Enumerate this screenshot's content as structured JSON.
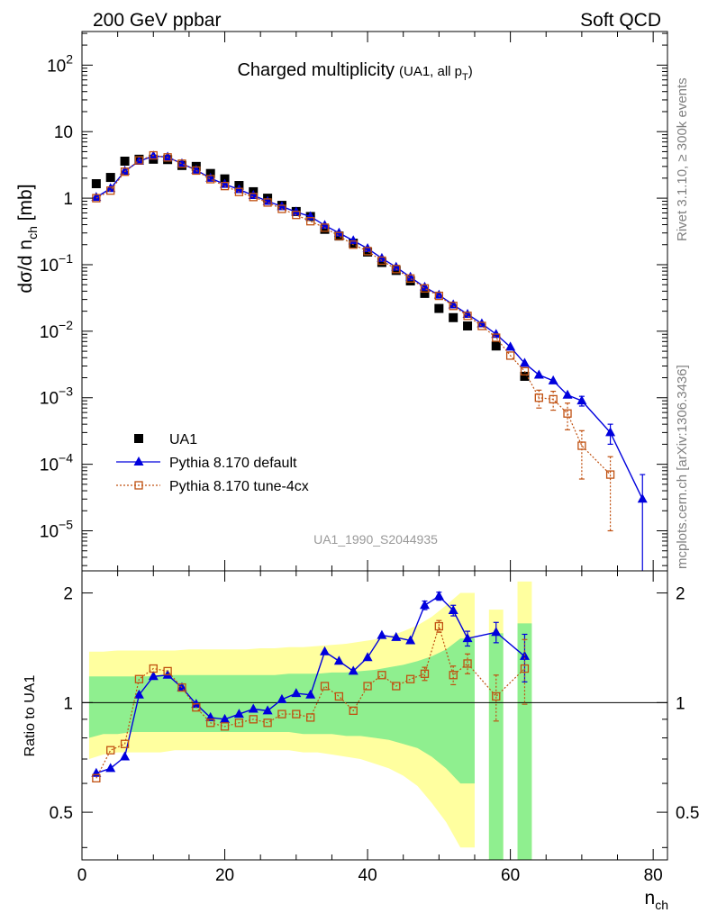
{
  "header": {
    "left": "200 GeV ppbar",
    "right": "Soft QCD"
  },
  "side": {
    "rivet": "Rivet 3.1.10, ≥ 300k events",
    "mcplots": "mcplots.cern.ch [arXiv:1306.3436]"
  },
  "chart_data": {
    "type": "scatter",
    "title": "Charged multiplicity",
    "title_note": "(UA1, all p",
    "title_note_sub": "T",
    "title_note_end": ")",
    "analysis_id": "UA1_1990_S2044935",
    "xlabel": "n",
    "xlabel_sub": "ch",
    "ylabel": "dσ/d n",
    "ylabel_sub": "ch",
    "ylabel_unit": " [mb]",
    "ratio_ylabel": "Ratio to UA1",
    "xlim": [
      0,
      82
    ],
    "ylim": [
      2.5e-06,
      320
    ],
    "ratio_ylim": [
      0.37,
      2.3
    ],
    "x_ticks": [
      0,
      20,
      40,
      60,
      80
    ],
    "x_tick_labels": [
      "0",
      "20",
      "40",
      "60",
      "80"
    ],
    "y_ticks": [
      1e-05,
      0.0001,
      0.001,
      0.01,
      0.1,
      1,
      10,
      100
    ],
    "y_tick_labels": [
      {
        "base": "10",
        "exp": "−5"
      },
      {
        "base": "10",
        "exp": "−4"
      },
      {
        "base": "10",
        "exp": "−3"
      },
      {
        "base": "10",
        "exp": "−2"
      },
      {
        "base": "10",
        "exp": "−1"
      },
      {
        "base": "1",
        "exp": ""
      },
      {
        "base": "10",
        "exp": ""
      },
      {
        "base": "10",
        "exp": "2"
      }
    ],
    "ratio_ticks": [
      0.5,
      1,
      2
    ],
    "ratio_tick_labels": [
      "0.5",
      "1",
      "2"
    ],
    "legend": [
      {
        "label": "UA1",
        "marker": "square-filled",
        "color": "#000000"
      },
      {
        "label": "Pythia 8.170 default",
        "marker": "triangle",
        "color": "#0000dd"
      },
      {
        "label": "Pythia 8.170 tune-4cx",
        "marker": "square-open",
        "color": "#c05010"
      }
    ],
    "data": {
      "name": "UA1",
      "x": [
        2,
        4,
        6,
        8,
        10,
        12,
        14,
        16,
        18,
        20,
        22,
        24,
        26,
        28,
        30,
        32,
        34,
        36,
        38,
        40,
        42,
        44,
        46,
        48,
        50,
        52,
        54,
        58,
        62
      ],
      "y": [
        1.65,
        2.05,
        3.6,
        3.85,
        3.85,
        3.8,
        3.1,
        3.0,
        2.35,
        1.95,
        1.55,
        1.25,
        1.0,
        0.78,
        0.63,
        0.53,
        0.34,
        0.27,
        0.21,
        0.155,
        0.108,
        0.082,
        0.057,
        0.037,
        0.022,
        0.016,
        0.012,
        0.006,
        0.0021
      ]
    },
    "band_x": [
      1,
      3,
      5,
      7,
      9,
      11,
      13,
      15,
      17,
      19,
      21,
      23,
      25,
      27,
      29,
      31,
      33,
      35,
      37,
      39,
      41,
      43,
      45,
      47,
      49,
      51,
      53,
      55
    ],
    "band_inner_lo": [
      0.8,
      0.82,
      0.82,
      0.83,
      0.83,
      0.83,
      0.83,
      0.83,
      0.83,
      0.83,
      0.83,
      0.83,
      0.83,
      0.83,
      0.83,
      0.82,
      0.82,
      0.82,
      0.81,
      0.81,
      0.8,
      0.79,
      0.77,
      0.75,
      0.71,
      0.66,
      0.6,
      0.6
    ],
    "band_inner_hi": [
      1.18,
      1.18,
      1.18,
      1.18,
      1.18,
      1.19,
      1.19,
      1.19,
      1.19,
      1.19,
      1.19,
      1.19,
      1.19,
      1.19,
      1.2,
      1.2,
      1.2,
      1.21,
      1.21,
      1.22,
      1.23,
      1.25,
      1.27,
      1.3,
      1.34,
      1.4,
      1.5,
      1.5
    ],
    "band_outer_lo": [
      0.7,
      0.72,
      0.73,
      0.73,
      0.73,
      0.73,
      0.74,
      0.74,
      0.74,
      0.74,
      0.74,
      0.74,
      0.74,
      0.74,
      0.74,
      0.73,
      0.73,
      0.72,
      0.71,
      0.7,
      0.68,
      0.66,
      0.63,
      0.59,
      0.53,
      0.47,
      0.4,
      0.4
    ],
    "band_outer_hi": [
      1.38,
      1.38,
      1.39,
      1.39,
      1.39,
      1.39,
      1.39,
      1.4,
      1.4,
      1.4,
      1.4,
      1.4,
      1.41,
      1.41,
      1.42,
      1.42,
      1.43,
      1.44,
      1.45,
      1.47,
      1.49,
      1.52,
      1.57,
      1.63,
      1.72,
      1.85,
      2.0,
      2.0
    ],
    "extra_bands": [
      {
        "x0": 57,
        "x1": 59,
        "inner_lo": 0.37,
        "inner_hi": 1.55,
        "outer_lo": 0.37,
        "outer_hi": 1.8
      },
      {
        "x0": 61,
        "x1": 63,
        "inner_lo": 0.37,
        "inner_hi": 1.65,
        "outer_lo": 0.37,
        "outer_hi": 2.15
      }
    ],
    "series": [
      {
        "name": "Pythia 8.170 default",
        "color": "#0000dd",
        "x": [
          2,
          4,
          6,
          8,
          10,
          12,
          14,
          16,
          18,
          20,
          22,
          24,
          26,
          28,
          30,
          32,
          34,
          36,
          38,
          40,
          42,
          44,
          46,
          48,
          50,
          52,
          54,
          56,
          58,
          60,
          62,
          64,
          66,
          68,
          70,
          74,
          78.5
        ],
        "y": [
          1.03,
          1.4,
          2.55,
          3.6,
          4.3,
          4.15,
          3.3,
          2.65,
          2.0,
          1.62,
          1.35,
          1.1,
          0.9,
          0.75,
          0.62,
          0.53,
          0.39,
          0.3,
          0.23,
          0.175,
          0.125,
          0.092,
          0.065,
          0.046,
          0.035,
          0.025,
          0.018,
          0.013,
          0.009,
          0.0058,
          0.0033,
          0.0022,
          0.0018,
          0.0011,
          0.0009,
          0.0003,
          3e-05
        ],
        "y_err": [
          0,
          0,
          0,
          0,
          0,
          0,
          0,
          0,
          0,
          0,
          0,
          0,
          0,
          0,
          0,
          0,
          0,
          0,
          0,
          0,
          0,
          0,
          0,
          0,
          0,
          0,
          0,
          0,
          0,
          0,
          0,
          0,
          0,
          0,
          0.00015,
          0.0001,
          4e-05
        ],
        "ratio_x": [
          2,
          4,
          6,
          8,
          10,
          12,
          14,
          16,
          18,
          20,
          22,
          24,
          26,
          28,
          30,
          32,
          34,
          36,
          38,
          40,
          42,
          44,
          46,
          48,
          50,
          52,
          54,
          58,
          62
        ],
        "ratio": [
          0.64,
          0.66,
          0.71,
          1.05,
          1.18,
          1.19,
          1.1,
          0.99,
          0.91,
          0.9,
          0.93,
          0.96,
          0.95,
          1.02,
          1.06,
          1.05,
          1.38,
          1.3,
          1.22,
          1.33,
          1.53,
          1.51,
          1.48,
          1.85,
          1.96,
          1.79,
          1.5,
          1.56,
          1.34
        ],
        "ratio_err": [
          0,
          0,
          0,
          0,
          0,
          0,
          0,
          0,
          0,
          0,
          0,
          0,
          0,
          0,
          0,
          0,
          0,
          0,
          0,
          0,
          0,
          0,
          0,
          0.05,
          0.05,
          0.06,
          0.07,
          0.1,
          0.2
        ]
      },
      {
        "name": "Pythia 8.170 tune-4cx",
        "color": "#c05010",
        "x": [
          2,
          4,
          6,
          8,
          10,
          12,
          14,
          16,
          18,
          20,
          22,
          24,
          26,
          28,
          30,
          32,
          34,
          36,
          38,
          40,
          42,
          44,
          46,
          48,
          50,
          52,
          54,
          56,
          58,
          60,
          62,
          64,
          66,
          68,
          70,
          74
        ],
        "y": [
          1.0,
          1.3,
          2.5,
          3.7,
          4.4,
          4.1,
          3.3,
          2.6,
          1.93,
          1.52,
          1.24,
          1.04,
          0.86,
          0.69,
          0.56,
          0.45,
          0.36,
          0.27,
          0.2,
          0.16,
          0.115,
          0.086,
          0.062,
          0.044,
          0.034,
          0.024,
          0.017,
          0.012,
          0.008,
          0.0043,
          0.0025,
          0.001,
          0.00095,
          0.00058,
          0.00019,
          7e-05
        ],
        "y_err": [
          0,
          0,
          0,
          0,
          0,
          0,
          0,
          0,
          0,
          0,
          0,
          0,
          0,
          0,
          0,
          0,
          0,
          0,
          0,
          0,
          0,
          0,
          0,
          0,
          0,
          0,
          0,
          0,
          0,
          0,
          0,
          0.0003,
          0.0003,
          0.00025,
          0.00013,
          6e-05
        ],
        "ratio_x": [
          2,
          4,
          6,
          8,
          10,
          12,
          14,
          16,
          18,
          20,
          22,
          24,
          26,
          28,
          30,
          32,
          34,
          36,
          38,
          40,
          42,
          44,
          46,
          48,
          50,
          52,
          54,
          58,
          62
        ],
        "ratio": [
          0.62,
          0.74,
          0.77,
          1.16,
          1.24,
          1.22,
          1.1,
          0.97,
          0.88,
          0.86,
          0.88,
          0.9,
          0.88,
          0.93,
          0.93,
          0.91,
          1.11,
          1.04,
          0.95,
          1.11,
          1.19,
          1.11,
          1.16,
          1.2,
          1.62,
          1.19,
          1.28,
          1.04,
          1.24
        ],
        "ratio_err": [
          0,
          0,
          0,
          0,
          0,
          0,
          0,
          0,
          0,
          0,
          0,
          0,
          0,
          0,
          0,
          0,
          0,
          0,
          0,
          0,
          0,
          0,
          0,
          0.05,
          0.06,
          0.07,
          0.08,
          0.15,
          0.25
        ]
      }
    ]
  }
}
